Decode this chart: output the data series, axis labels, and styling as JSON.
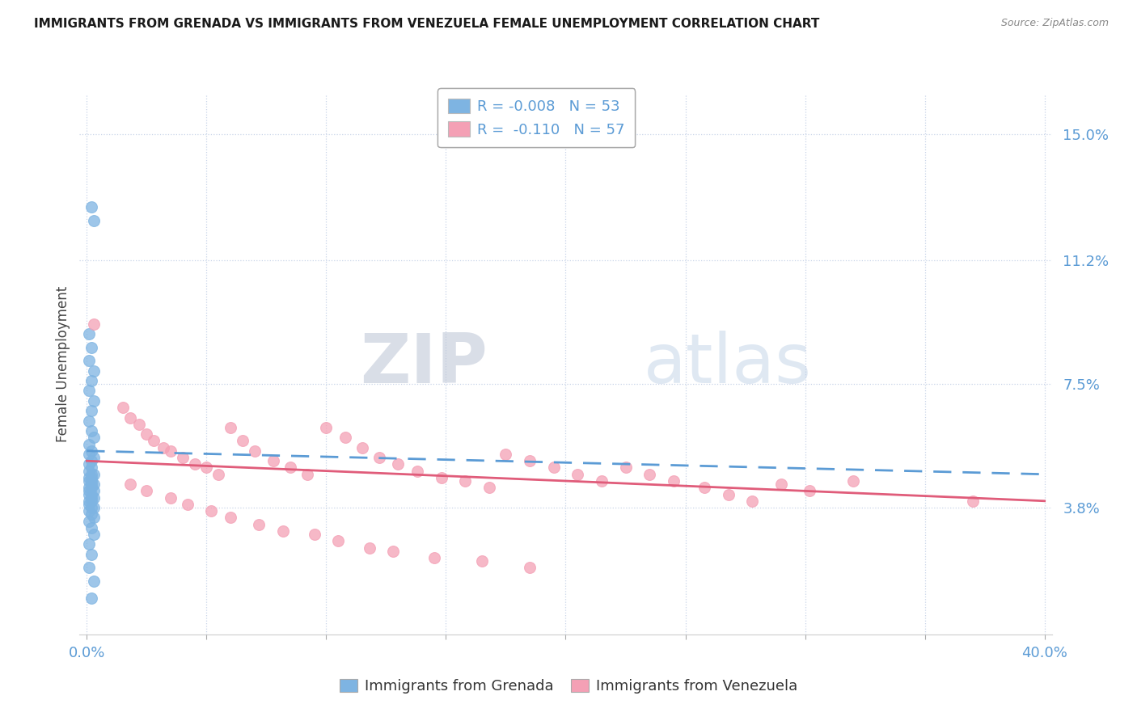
{
  "title": "IMMIGRANTS FROM GRENADA VS IMMIGRANTS FROM VENEZUELA FEMALE UNEMPLOYMENT CORRELATION CHART",
  "source": "Source: ZipAtlas.com",
  "ylabel": "Female Unemployment",
  "y_ticks": [
    0.038,
    0.075,
    0.112,
    0.15
  ],
  "y_tick_labels": [
    "3.8%",
    "7.5%",
    "11.2%",
    "15.0%"
  ],
  "x_ticks": [
    0.0,
    0.05,
    0.1,
    0.15,
    0.2,
    0.25,
    0.3,
    0.35,
    0.4
  ],
  "x_tick_labels_show": [
    "0.0%",
    "",
    "",
    "",
    "",
    "",
    "",
    "",
    "40.0%"
  ],
  "legend_grenada": "Immigrants from Grenada",
  "legend_venezuela": "Immigrants from Venezuela",
  "R_grenada": "-0.008",
  "N_grenada": "53",
  "R_venezuela": "-0.110",
  "N_venezuela": "57",
  "color_grenada": "#7eb4e2",
  "color_venezuela": "#f4a0b5",
  "color_line_grenada": "#5b9bd5",
  "color_line_venezuela": "#e05c7a",
  "color_axis_labels": "#5b9bd5",
  "color_grid": "#c8d4e8",
  "background": "#ffffff",
  "watermark_zip": "ZIP",
  "watermark_atlas": "atlas",
  "grenada_trend_start": 0.055,
  "grenada_trend_end": 0.048,
  "venezuela_trend_start": 0.052,
  "venezuela_trend_end": 0.04,
  "xlim": [
    -0.003,
    0.403
  ],
  "ylim": [
    0.0,
    0.162
  ],
  "grenada_x": [
    0.002,
    0.003,
    0.001,
    0.002,
    0.001,
    0.003,
    0.002,
    0.001,
    0.003,
    0.002,
    0.001,
    0.002,
    0.003,
    0.001,
    0.002,
    0.001,
    0.003,
    0.002,
    0.001,
    0.002,
    0.001,
    0.002,
    0.003,
    0.002,
    0.001,
    0.002,
    0.001,
    0.003,
    0.002,
    0.001,
    0.002,
    0.001,
    0.003,
    0.002,
    0.001,
    0.002,
    0.003,
    0.001,
    0.002,
    0.001,
    0.003,
    0.002,
    0.001,
    0.002,
    0.003,
    0.001,
    0.002,
    0.003,
    0.001,
    0.002,
    0.001,
    0.003,
    0.002
  ],
  "grenada_y": [
    0.128,
    0.124,
    0.09,
    0.086,
    0.082,
    0.079,
    0.076,
    0.073,
    0.07,
    0.067,
    0.064,
    0.061,
    0.059,
    0.057,
    0.055,
    0.054,
    0.053,
    0.052,
    0.051,
    0.05,
    0.049,
    0.048,
    0.048,
    0.047,
    0.047,
    0.046,
    0.046,
    0.045,
    0.045,
    0.044,
    0.044,
    0.043,
    0.043,
    0.042,
    0.042,
    0.041,
    0.041,
    0.04,
    0.04,
    0.039,
    0.038,
    0.038,
    0.037,
    0.036,
    0.035,
    0.034,
    0.032,
    0.03,
    0.027,
    0.024,
    0.02,
    0.016,
    0.011
  ],
  "venezuela_x": [
    0.003,
    0.015,
    0.018,
    0.022,
    0.025,
    0.028,
    0.032,
    0.035,
    0.04,
    0.045,
    0.05,
    0.055,
    0.06,
    0.065,
    0.07,
    0.078,
    0.085,
    0.092,
    0.1,
    0.108,
    0.115,
    0.122,
    0.13,
    0.138,
    0.148,
    0.158,
    0.168,
    0.175,
    0.185,
    0.195,
    0.205,
    0.215,
    0.225,
    0.235,
    0.245,
    0.258,
    0.268,
    0.278,
    0.29,
    0.302,
    0.018,
    0.025,
    0.035,
    0.042,
    0.052,
    0.06,
    0.072,
    0.082,
    0.095,
    0.105,
    0.118,
    0.128,
    0.145,
    0.165,
    0.185,
    0.32,
    0.37
  ],
  "venezuela_y": [
    0.093,
    0.068,
    0.065,
    0.063,
    0.06,
    0.058,
    0.056,
    0.055,
    0.053,
    0.051,
    0.05,
    0.048,
    0.062,
    0.058,
    0.055,
    0.052,
    0.05,
    0.048,
    0.062,
    0.059,
    0.056,
    0.053,
    0.051,
    0.049,
    0.047,
    0.046,
    0.044,
    0.054,
    0.052,
    0.05,
    0.048,
    0.046,
    0.05,
    0.048,
    0.046,
    0.044,
    0.042,
    0.04,
    0.045,
    0.043,
    0.045,
    0.043,
    0.041,
    0.039,
    0.037,
    0.035,
    0.033,
    0.031,
    0.03,
    0.028,
    0.026,
    0.025,
    0.023,
    0.022,
    0.02,
    0.046,
    0.04
  ]
}
